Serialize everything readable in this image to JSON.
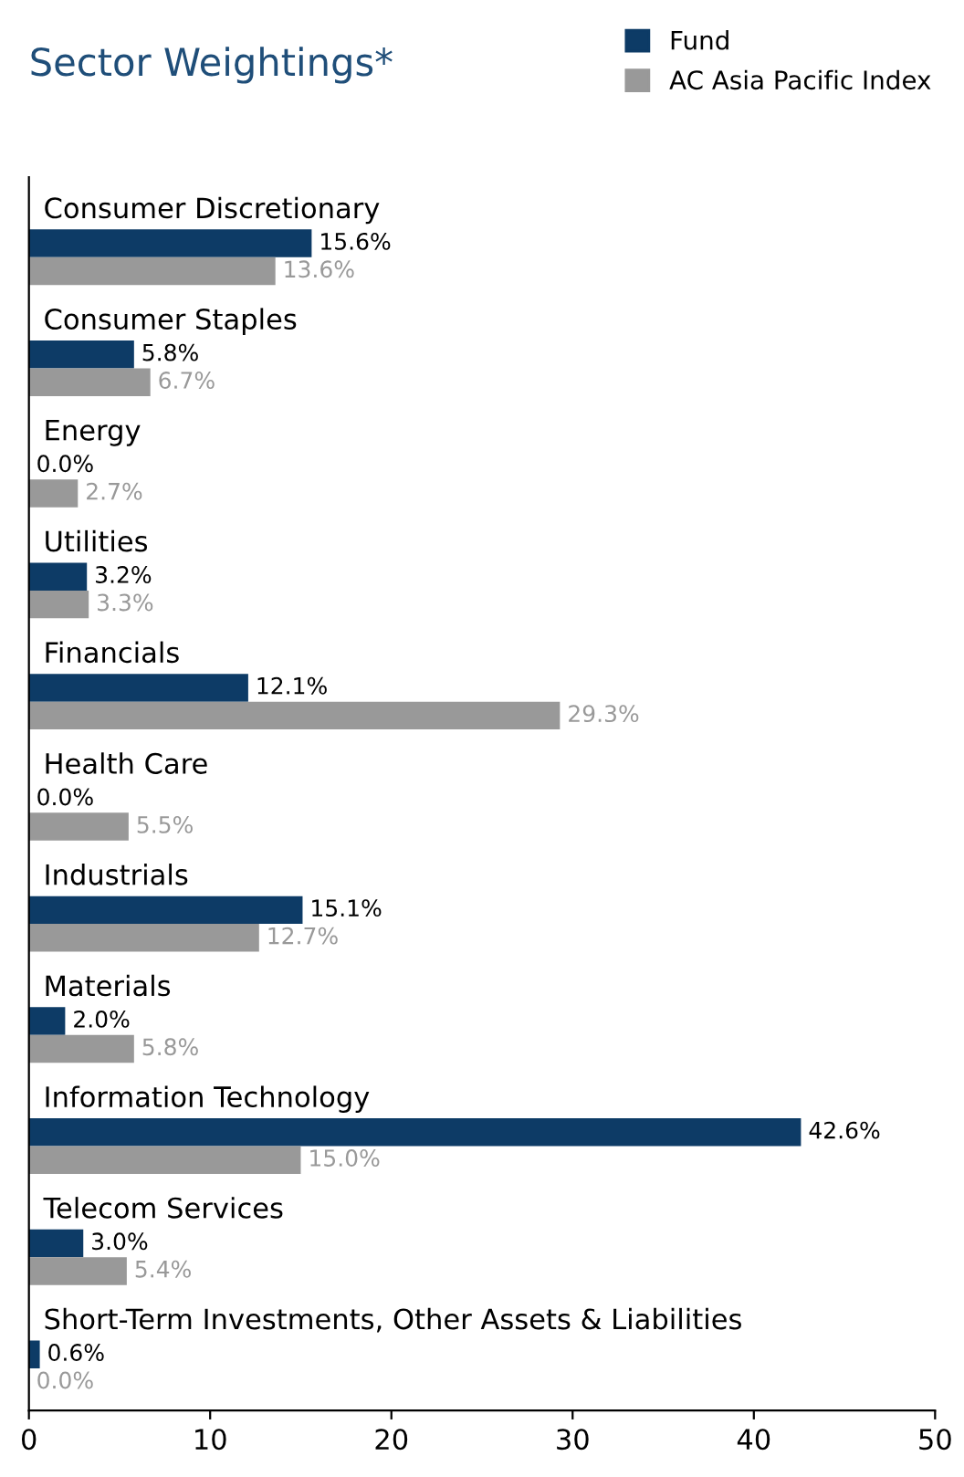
{
  "chart_data": {
    "type": "bar",
    "orientation": "horizontal",
    "title": "Sector Weightings*",
    "categories": [
      "Consumer Discretionary",
      "Consumer Staples",
      "Energy",
      "Utilities",
      "Financials",
      "Health Care",
      "Industrials",
      "Materials",
      "Information Technology",
      "Telecom Services",
      "Short-Term Investments, Other Assets & Liabilities"
    ],
    "series": [
      {
        "name": "Fund",
        "color": "#0d3b66",
        "values": [
          15.6,
          5.8,
          0.0,
          3.2,
          12.1,
          0.0,
          15.1,
          2.0,
          42.6,
          3.0,
          0.6
        ],
        "value_labels": [
          "15.6%",
          "5.8%",
          "0.0%",
          "3.2%",
          "12.1%",
          "0.0%",
          "15.1%",
          "2.0%",
          "42.6%",
          "3.0%",
          "0.6%"
        ]
      },
      {
        "name": "AC Asia Pacific Index",
        "color": "#999999",
        "values": [
          13.6,
          6.7,
          2.7,
          3.3,
          29.3,
          5.5,
          12.7,
          5.8,
          15.0,
          5.4,
          0.0
        ],
        "value_labels": [
          "13.6%",
          "6.7%",
          "2.7%",
          "3.3%",
          "29.3%",
          "5.5%",
          "12.7%",
          "5.8%",
          "15.0%",
          "5.4%",
          "0.0%"
        ]
      }
    ],
    "xlim": [
      0,
      50
    ],
    "xticks": [
      0,
      10,
      20,
      30,
      40,
      50
    ],
    "grid": false,
    "legend": "top right"
  }
}
